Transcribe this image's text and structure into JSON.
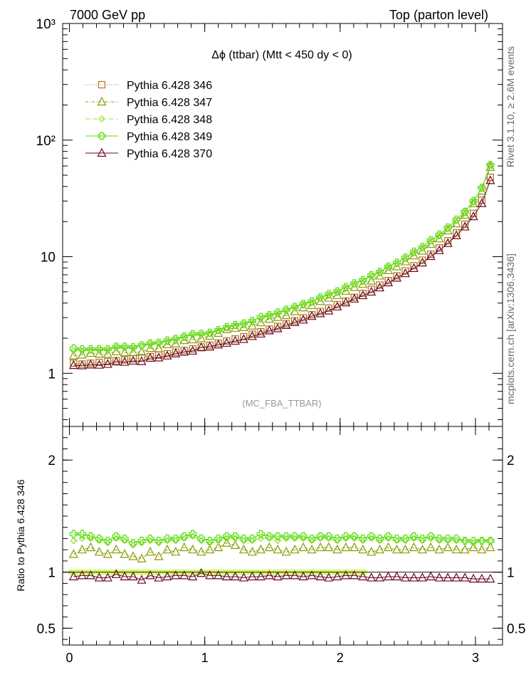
{
  "header": {
    "left": "7000 GeV pp",
    "right": "Top (parton level)"
  },
  "side_labels": {
    "rivet": "Rivet 3.1.10, ≥ 2.6M events",
    "mcplots": "mcplots.cern.ch [arXiv:1306.3436]"
  },
  "watermark": "(MC_FBA_TTBAR)",
  "ratio_ylabel": "Ratio to Pythia 6.428 346",
  "chart_data": {
    "type": "line",
    "title": "Δϕ (ttbar) (Mtt < 450 dy < 0)",
    "main": {
      "yscale": "log",
      "ylim": [
        0.35,
        1000
      ],
      "ytick_labels": [
        "1",
        "10",
        "10²",
        "10³"
      ],
      "ytick_values": [
        1,
        10,
        100,
        1000
      ]
    },
    "ratio": {
      "ylim": [
        0.35,
        2.3
      ],
      "ytick_labels": [
        "0.5",
        "1",
        "2"
      ],
      "ytick_values": [
        0.5,
        1,
        2
      ],
      "band_color": "#ccff66"
    },
    "xlim": [
      -0.05,
      3.2
    ],
    "xtick_labels": [
      "0",
      "1",
      "2",
      "3"
    ],
    "xtick_values": [
      0,
      1,
      2,
      3
    ],
    "legend_position": "top-left",
    "series": [
      {
        "name": "Pythia 6.428 346",
        "color": "#b07020",
        "marker": "square",
        "dash": "1,2",
        "ratio": [
          1,
          1,
          1,
          1,
          1,
          1,
          1,
          1,
          1,
          1,
          1,
          1,
          1,
          1,
          1,
          1,
          1,
          1,
          1,
          1,
          1,
          1,
          1,
          1,
          1,
          1,
          1,
          1,
          1,
          1,
          1,
          1,
          1,
          1,
          1,
          1,
          1,
          1,
          1,
          1,
          1,
          1,
          1,
          1,
          1,
          1,
          1,
          1,
          1,
          1
        ]
      },
      {
        "name": "Pythia 6.428 347",
        "color": "#8a9a00",
        "marker": "triangle",
        "dash": "4,2,1,2",
        "ratio": [
          1.16,
          1.2,
          1.22,
          1.18,
          1.16,
          1.2,
          1.16,
          1.14,
          1.12,
          1.18,
          1.14,
          1.2,
          1.18,
          1.22,
          1.2,
          1.18,
          1.2,
          1.22,
          1.26,
          1.24,
          1.2,
          1.18,
          1.2,
          1.22,
          1.2,
          1.18,
          1.2,
          1.22,
          1.2,
          1.22,
          1.22,
          1.2,
          1.22,
          1.22,
          1.2,
          1.18,
          1.2,
          1.22,
          1.2,
          1.2,
          1.22,
          1.2,
          1.22,
          1.2,
          1.22,
          1.2,
          1.2,
          1.22,
          1.2,
          1.22
        ]
      },
      {
        "name": "Pythia 6.428 348",
        "color": "#99dd33",
        "marker": "diamond",
        "dash": "6,2,1,2",
        "ratio": [
          1.28,
          1.3,
          1.3,
          1.28,
          1.26,
          1.3,
          1.28,
          1.24,
          1.26,
          1.28,
          1.26,
          1.28,
          1.28,
          1.3,
          1.32,
          1.28,
          1.26,
          1.28,
          1.3,
          1.3,
          1.28,
          1.28,
          1.3,
          1.3,
          1.28,
          1.3,
          1.3,
          1.3,
          1.28,
          1.3,
          1.3,
          1.28,
          1.3,
          1.3,
          1.28,
          1.3,
          1.28,
          1.3,
          1.28,
          1.28,
          1.3,
          1.28,
          1.3,
          1.28,
          1.28,
          1.28,
          1.28,
          1.26,
          1.28,
          1.28
        ]
      },
      {
        "name": "Pythia 6.428 349",
        "color": "#55dd11",
        "marker": "cross",
        "dash": "",
        "ratio": [
          1.34,
          1.34,
          1.32,
          1.3,
          1.28,
          1.32,
          1.3,
          1.26,
          1.28,
          1.3,
          1.28,
          1.3,
          1.3,
          1.32,
          1.34,
          1.3,
          1.28,
          1.3,
          1.32,
          1.32,
          1.3,
          1.3,
          1.34,
          1.32,
          1.32,
          1.32,
          1.32,
          1.32,
          1.3,
          1.32,
          1.32,
          1.3,
          1.32,
          1.32,
          1.3,
          1.32,
          1.3,
          1.32,
          1.3,
          1.3,
          1.32,
          1.3,
          1.32,
          1.3,
          1.3,
          1.3,
          1.28,
          1.28,
          1.28,
          1.28
        ]
      },
      {
        "name": "Pythia 6.428 370",
        "color": "#6a0a22",
        "marker": "triangle",
        "dash": "",
        "ratio": [
          0.96,
          0.97,
          0.97,
          0.95,
          0.95,
          0.98,
          0.96,
          0.96,
          0.93,
          0.97,
          0.95,
          0.96,
          0.97,
          0.97,
          0.96,
          0.99,
          0.97,
          0.97,
          0.96,
          0.96,
          0.95,
          0.96,
          0.96,
          0.97,
          0.96,
          0.97,
          0.97,
          0.96,
          0.97,
          0.96,
          0.95,
          0.96,
          0.97,
          0.97,
          0.96,
          0.95,
          0.95,
          0.96,
          0.96,
          0.95,
          0.95,
          0.95,
          0.96,
          0.95,
          0.95,
          0.95,
          0.95,
          0.94,
          0.94,
          0.94
        ]
      }
    ],
    "x": [
      0.031,
      0.094,
      0.157,
      0.22,
      0.283,
      0.346,
      0.408,
      0.471,
      0.534,
      0.597,
      0.66,
      0.723,
      0.785,
      0.848,
      0.911,
      0.974,
      1.037,
      1.1,
      1.162,
      1.225,
      1.288,
      1.351,
      1.414,
      1.477,
      1.539,
      1.602,
      1.665,
      1.728,
      1.791,
      1.854,
      1.916,
      1.979,
      2.042,
      2.105,
      2.168,
      2.231,
      2.293,
      2.356,
      2.419,
      2.482,
      2.545,
      2.608,
      2.67,
      2.733,
      2.796,
      2.859,
      2.922,
      2.985,
      3.047,
      3.11
    ],
    "reference_values": [
      1.22,
      1.2,
      1.22,
      1.24,
      1.26,
      1.28,
      1.3,
      1.33,
      1.36,
      1.39,
      1.43,
      1.47,
      1.52,
      1.57,
      1.62,
      1.68,
      1.74,
      1.81,
      1.89,
      1.97,
      2.06,
      2.16,
      2.27,
      2.39,
      2.52,
      2.66,
      2.82,
      2.99,
      3.18,
      3.39,
      3.62,
      3.88,
      4.16,
      4.48,
      4.84,
      5.25,
      5.71,
      6.24,
      6.85,
      7.55,
      8.37,
      9.33,
      10.5,
      11.9,
      13.7,
      16.0,
      19.0,
      23.5,
      30.5,
      48.0
    ]
  }
}
